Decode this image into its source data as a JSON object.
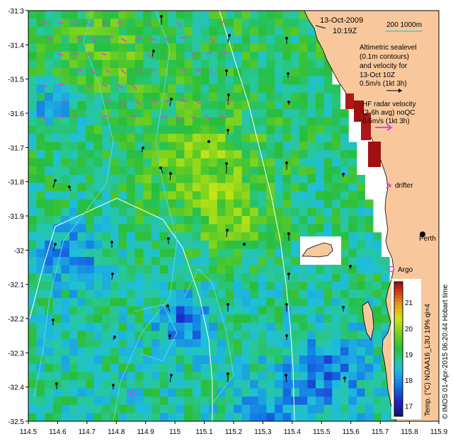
{
  "map": {
    "title_date": "13-Oct-2009",
    "title_time": "10:19Z",
    "scale_label": "200 1000m",
    "legend": {
      "altimetric_text": [
        "Altimetric sealevel",
        "(0.1m contours)",
        "and velocity for",
        "13-Oct 10Z",
        "0.5m/s (1kt 3h)"
      ],
      "hf_text": [
        "HF radar velocity",
        "(3-6h avg) noQC",
        "0.5m/s (1kt 3h)"
      ],
      "drifter_label": "drifter",
      "perth_label": "Perth",
      "argo_label": "Argo"
    },
    "x_ticks": [
      "114.5",
      "114.6",
      "114.7",
      "114.8",
      "114.9",
      "115",
      "115.1",
      "115.2",
      "115.3",
      "115.4",
      "115.5",
      "115.6",
      "115.7",
      "115.8",
      "115.9"
    ],
    "y_ticks": [
      "-31.3",
      "-31.4",
      "-31.5",
      "-31.6",
      "-31.7",
      "-31.8",
      "-31.9",
      "-32",
      "-32.1",
      "-32.2",
      "-32.3",
      "-32.4",
      "-32.5"
    ],
    "colorbar": {
      "label": "Temp. (°C) NOAA16_L3U 19% qi=4",
      "ticks": [
        "17",
        "18",
        "19",
        "20",
        "21"
      ],
      "min": 16.6,
      "max": 21.8
    },
    "credit": "© IMOS 01-Apr-2015 06:20:44 Hobart time",
    "colors": {
      "land": "#f8c89c",
      "drifter": "#e040e0",
      "contour": "#60d8f0",
      "isobath": "#ffffff"
    }
  }
}
